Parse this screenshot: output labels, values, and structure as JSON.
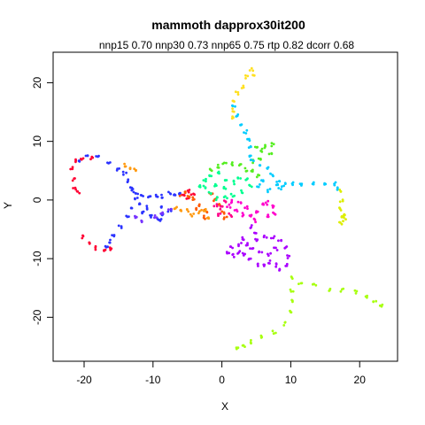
{
  "chart_data": {
    "type": "scatter",
    "title": "mammoth dapprox30it200",
    "subtitle": "nnp15 0.70 nnp30 0.73 nnp65 0.75 rtp 0.82 dcorr 0.68",
    "xlabel": "X",
    "ylabel": "Y",
    "xlim": [
      -24.5,
      25.5
    ],
    "ylim": [
      -27.5,
      25.2
    ],
    "x_ticks": [
      -20,
      -10,
      0,
      10,
      20
    ],
    "y_ticks": [
      -20,
      -10,
      0,
      10,
      20
    ],
    "grid": false,
    "legend": "none",
    "series": [
      {
        "color": "#ff0033",
        "points": [
          [
            -21.3,
            6.8
          ],
          [
            -21.8,
            5.5
          ],
          [
            -21.5,
            3.5
          ],
          [
            -21.4,
            2.0
          ],
          [
            -20.9,
            1.4
          ],
          [
            -20.3,
            6.9
          ],
          [
            -19.0,
            7.2
          ],
          [
            -20.3,
            -6.3
          ],
          [
            -19.3,
            -7.5
          ],
          [
            -18.3,
            -8.2
          ],
          [
            -17.0,
            -8.8
          ],
          [
            -16.2,
            -8.3
          ],
          [
            -5.5,
            0.9
          ],
          [
            -4.8,
            1.6
          ],
          [
            -4.2,
            1.0
          ],
          [
            -5.0,
            0.4
          ]
        ]
      },
      {
        "color": "#ff5a00",
        "points": [
          [
            -4.8,
            0.7
          ],
          [
            -4.0,
            0.3
          ],
          [
            -3.2,
            -0.8
          ],
          [
            -2.3,
            -1.8
          ],
          [
            -2.5,
            -3.0
          ],
          [
            -3.8,
            -1.4
          ],
          [
            -5.4,
            1.2
          ],
          [
            -6.0,
            0.8
          ],
          [
            -1.6,
            1.2
          ],
          [
            -1.0,
            0.1
          ],
          [
            -0.3,
            -1.0
          ],
          [
            0.2,
            -2.2
          ],
          [
            0.5,
            -3.0
          ]
        ]
      },
      {
        "color": "#ff9a10",
        "points": [
          [
            -14.0,
            6.0
          ],
          [
            -13.2,
            5.5
          ],
          [
            -12.6,
            5.1
          ],
          [
            -6.7,
            -1.5
          ],
          [
            -6.0,
            -1.8
          ],
          [
            -5.1,
            -1.7
          ],
          [
            -4.3,
            -2.5
          ],
          [
            -3.2,
            -2.0
          ],
          [
            -2.5,
            -1.6
          ],
          [
            -2.0,
            -2.9
          ]
        ]
      },
      {
        "color": "#ffe020",
        "points": [
          [
            4.3,
            22.2
          ],
          [
            4.6,
            21.5
          ],
          [
            3.6,
            21.0
          ],
          [
            3.0,
            19.3
          ],
          [
            2.2,
            18.2
          ],
          [
            1.8,
            16.8
          ],
          [
            1.7,
            15.3
          ],
          [
            1.5,
            14.0
          ]
        ]
      },
      {
        "color": "#ddee00",
        "points": [
          [
            17.2,
            1.5
          ],
          [
            17.4,
            0.0
          ],
          [
            17.2,
            -1.5
          ],
          [
            17.4,
            -2.8
          ],
          [
            17.3,
            -4.0
          ],
          [
            17.8,
            -3.3
          ],
          [
            17.6,
            -2.4
          ]
        ]
      },
      {
        "color": "#a8ff10",
        "points": [
          [
            10.0,
            -13.3
          ],
          [
            11.4,
            -14.2
          ],
          [
            13.4,
            -14.6
          ],
          [
            15.5,
            -15.2
          ],
          [
            17.5,
            -15.4
          ],
          [
            19.5,
            -15.7
          ],
          [
            21.0,
            -16.6
          ],
          [
            22.2,
            -17.5
          ],
          [
            23.2,
            -17.9
          ],
          [
            10.2,
            -15.5
          ],
          [
            10.4,
            -17.2
          ],
          [
            10.1,
            -19.2
          ],
          [
            9.0,
            -21.1
          ],
          [
            7.6,
            -22.5
          ],
          [
            5.8,
            -23.4
          ],
          [
            4.2,
            -24.2
          ],
          [
            3.2,
            -24.8
          ],
          [
            2.2,
            -25.2
          ]
        ]
      },
      {
        "color": "#55ee20",
        "points": [
          [
            4.9,
            9.0
          ],
          [
            5.6,
            8.5
          ],
          [
            6.4,
            9.1
          ],
          [
            7.4,
            9.4
          ],
          [
            7.0,
            7.8
          ],
          [
            5.5,
            7.0
          ],
          [
            4.4,
            6.6
          ],
          [
            -1.7,
            5.0
          ],
          [
            -0.6,
            5.7
          ],
          [
            0.4,
            6.1
          ],
          [
            1.5,
            6.1
          ],
          [
            2.6,
            5.8
          ],
          [
            3.6,
            5.2
          ],
          [
            4.5,
            5.1
          ],
          [
            5.2,
            4.1
          ]
        ]
      },
      {
        "color": "#00ff90",
        "points": [
          [
            -3.2,
            2.2
          ],
          [
            -2.5,
            3.4
          ],
          [
            -1.6,
            4.3
          ],
          [
            -0.6,
            4.6
          ],
          [
            0.6,
            3.6
          ],
          [
            1.6,
            3.0
          ],
          [
            2.5,
            3.6
          ],
          [
            3.6,
            3.5
          ],
          [
            4.1,
            2.4
          ],
          [
            2.9,
            1.4
          ],
          [
            1.6,
            0.9
          ],
          [
            0.5,
            0.6
          ],
          [
            -0.9,
            0.2
          ],
          [
            -1.8,
            1.2
          ],
          [
            -2.5,
            2.3
          ],
          [
            -1.0,
            2.6
          ],
          [
            0.3,
            2.0
          ]
        ]
      },
      {
        "color": "#00ccff",
        "points": [
          [
            1.7,
            16.2
          ],
          [
            2.2,
            14.3
          ],
          [
            2.9,
            12.8
          ],
          [
            3.4,
            11.6
          ],
          [
            3.8,
            10.3
          ],
          [
            4.0,
            8.9
          ],
          [
            4.0,
            7.7
          ],
          [
            4.4,
            6.6
          ],
          [
            5.4,
            5.8
          ],
          [
            6.5,
            5.4
          ],
          [
            7.2,
            4.2
          ],
          [
            7.9,
            2.8
          ],
          [
            8.5,
            2.0
          ],
          [
            9.2,
            2.6
          ],
          [
            10.4,
            2.8
          ],
          [
            11.6,
            2.6
          ],
          [
            13.3,
            2.8
          ],
          [
            15.0,
            2.7
          ],
          [
            16.3,
            2.8
          ],
          [
            17.0,
            2.0
          ],
          [
            6.9,
            1.6
          ],
          [
            5.3,
            2.4
          ],
          [
            6.0,
            3.4
          ],
          [
            8.2,
            3.0
          ]
        ]
      },
      {
        "color": "#2b33ff",
        "points": [
          [
            -20.8,
            6.8
          ],
          [
            -19.5,
            7.3
          ],
          [
            -18.0,
            7.2
          ],
          [
            -16.4,
            6.4
          ],
          [
            -15.0,
            5.2
          ],
          [
            -14.1,
            4.5
          ],
          [
            -13.6,
            3.3
          ],
          [
            -13.3,
            2.0
          ],
          [
            -12.9,
            1.6
          ],
          [
            -12.5,
            0.3
          ],
          [
            -13.0,
            -1.3
          ],
          [
            -13.7,
            -3.0
          ],
          [
            -14.8,
            -4.6
          ],
          [
            -15.8,
            -5.9
          ],
          [
            -16.3,
            -7.1
          ],
          [
            -16.8,
            -8.1
          ],
          [
            -12.3,
            1.3
          ],
          [
            -11.5,
            0.6
          ],
          [
            -10.5,
            0.5
          ],
          [
            -9.4,
            0.6
          ],
          [
            -8.5,
            0.6
          ],
          [
            -7.7,
            1.2
          ],
          [
            -7.0,
            1.1
          ],
          [
            -6.2,
            0.9
          ],
          [
            -11.6,
            -2.2
          ],
          [
            -10.4,
            -2.7
          ],
          [
            -9.4,
            -3.2
          ],
          [
            -8.5,
            -2.3
          ],
          [
            -7.6,
            -1.8
          ],
          [
            -8.8,
            -1.2
          ],
          [
            -10.7,
            -1.3
          ],
          [
            -12.0,
            -0.6
          ],
          [
            -8.9,
            -3.3
          ]
        ]
      },
      {
        "color": "#7733ff",
        "points": [
          [
            -8.7,
            -2.4
          ],
          [
            -7.5,
            -1.6
          ],
          [
            -9.7,
            -2.8
          ],
          [
            -11.7,
            -3.6
          ],
          [
            -12.6,
            -3.0
          ]
        ]
      },
      {
        "color": "#aa00ff",
        "points": [
          [
            4.3,
            -4.5
          ],
          [
            4.8,
            -5.6
          ],
          [
            5.0,
            -6.8
          ],
          [
            6.3,
            -6.4
          ],
          [
            7.4,
            -6.3
          ],
          [
            8.4,
            -6.9
          ],
          [
            9.3,
            -8.0
          ],
          [
            9.7,
            -9.7
          ],
          [
            9.5,
            -11.0
          ],
          [
            8.6,
            -12.0
          ],
          [
            7.8,
            -11.1
          ],
          [
            6.9,
            -10.6
          ],
          [
            6.2,
            -11.2
          ],
          [
            5.0,
            -11.0
          ],
          [
            4.0,
            -10.0
          ],
          [
            3.2,
            -9.3
          ],
          [
            2.4,
            -9.0
          ],
          [
            1.6,
            -9.5
          ],
          [
            0.8,
            -9.0
          ],
          [
            1.3,
            -8.0
          ],
          [
            2.6,
            -7.6
          ],
          [
            3.5,
            -7.5
          ],
          [
            4.3,
            -8.4
          ],
          [
            5.6,
            -8.9
          ],
          [
            6.9,
            -9.2
          ],
          [
            7.8,
            -8.4
          ],
          [
            3.2,
            -6.6
          ]
        ]
      },
      {
        "color": "#ff00cc",
        "points": [
          [
            1.0,
            -1.1
          ],
          [
            2.0,
            -1.8
          ],
          [
            3.1,
            -2.5
          ],
          [
            4.2,
            -2.8
          ],
          [
            5.2,
            -1.9
          ],
          [
            5.9,
            -0.9
          ],
          [
            6.5,
            -0.5
          ],
          [
            7.3,
            -1.2
          ],
          [
            7.6,
            -2.2
          ],
          [
            6.7,
            -2.7
          ],
          [
            4.7,
            -3.5
          ],
          [
            3.5,
            -1.3
          ],
          [
            2.6,
            -0.6
          ],
          [
            1.6,
            -0.3
          ]
        ]
      },
      {
        "color": "#ff0088",
        "points": [
          [
            -0.9,
            -0.9
          ],
          [
            0.0,
            -1.4
          ],
          [
            -0.3,
            -2.4
          ],
          [
            1.2,
            -2.6
          ],
          [
            0.6,
            -0.3
          ]
        ]
      }
    ]
  }
}
